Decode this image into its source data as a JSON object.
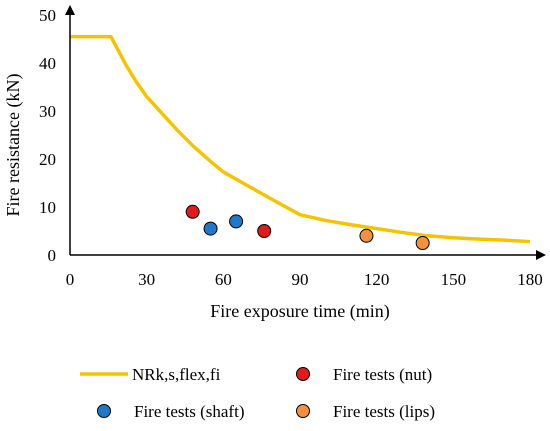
{
  "chart_data": {
    "type": "scatter",
    "title": "",
    "xlabel": "Fire exposure time (min)",
    "ylabel": "Fire resistance (kN)",
    "xlim": [
      0,
      180
    ],
    "ylim": [
      0,
      50
    ],
    "xticks": [
      0,
      30,
      60,
      90,
      120,
      150,
      180
    ],
    "yticks": [
      0,
      10,
      20,
      30,
      40,
      50
    ],
    "grid": false,
    "legend_position": "bottom",
    "colors": {
      "curve": "#F5C400",
      "nut": "#E31A1C",
      "shaft": "#1F78C8",
      "lips": "#F5913E",
      "axis": "#000000"
    },
    "series": [
      {
        "name": "NRk,s,flex,fi",
        "kind": "line",
        "x": [
          0,
          16,
          18,
          22,
          26,
          30,
          36,
          42,
          48,
          55,
          60,
          70,
          80,
          90,
          100,
          110,
          120,
          130,
          140,
          150,
          160,
          170,
          180
        ],
        "y": [
          45.5,
          45.5,
          43.5,
          39.5,
          36.0,
          33.0,
          29.5,
          26.0,
          22.8,
          19.5,
          17.3,
          14.3,
          11.3,
          8.4,
          7.2,
          6.3,
          5.5,
          4.7,
          4.0,
          3.6,
          3.3,
          3.1,
          2.8
        ]
      },
      {
        "name": "Fire tests (nut)",
        "kind": "scatter",
        "x": [
          48,
          76
        ],
        "y": [
          9.0,
          5.0
        ]
      },
      {
        "name": "Fire tests (shaft)",
        "kind": "scatter",
        "x": [
          55,
          65
        ],
        "y": [
          5.5,
          7.0
        ]
      },
      {
        "name": "Fire tests (lips)",
        "kind": "scatter",
        "x": [
          116,
          138
        ],
        "y": [
          4.0,
          2.5
        ]
      }
    ]
  }
}
